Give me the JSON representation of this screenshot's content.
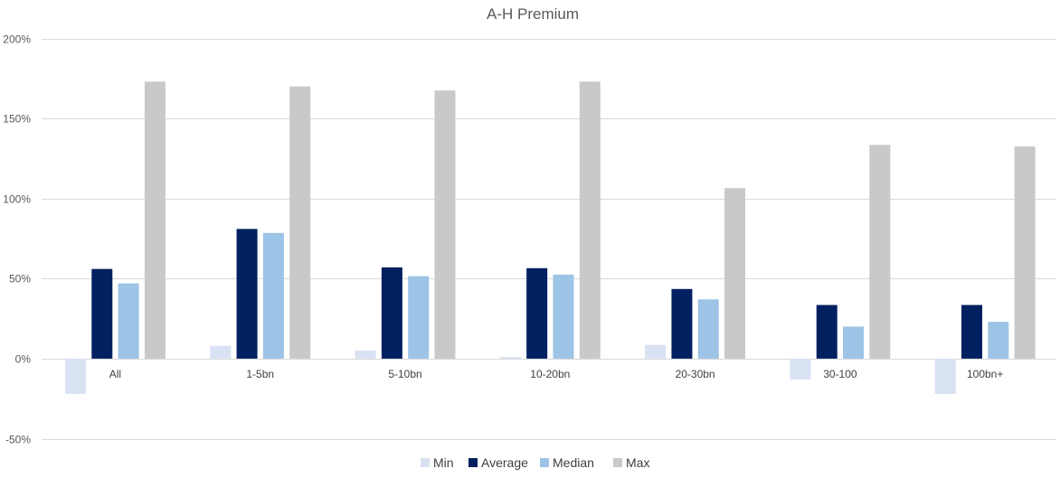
{
  "chart_data": {
    "type": "bar",
    "title": "A-H Premium",
    "xlabel": "",
    "ylabel": "",
    "categories": [
      "All",
      "1-5bn",
      "5-10bn",
      "10-20bn",
      "20-30bn",
      "30-100",
      "100bn+"
    ],
    "series": [
      {
        "name": "Min",
        "color": "#d9e2f3",
        "values": [
          -22,
          8,
          5,
          1,
          8.5,
          -13,
          -22
        ]
      },
      {
        "name": "Average",
        "color": "#002060",
        "values": [
          56,
          81,
          57,
          56.5,
          43.5,
          33.5,
          33.5
        ]
      },
      {
        "name": "Median",
        "color": "#9dc3e6",
        "values": [
          47,
          78.5,
          51.5,
          52.5,
          37,
          20,
          23
        ]
      },
      {
        "name": "Max",
        "color": "#c9c9c9",
        "values": [
          173,
          170,
          167.5,
          173,
          106.5,
          133.5,
          132.5
        ]
      }
    ],
    "ylim": [
      -50,
      200
    ],
    "yticks": [
      -50,
      0,
      50,
      100,
      150,
      200
    ],
    "ytick_labels": [
      "-50%",
      "0%",
      "50%",
      "100%",
      "150%",
      "200%"
    ],
    "grid": true,
    "legend_position": "bottom"
  }
}
